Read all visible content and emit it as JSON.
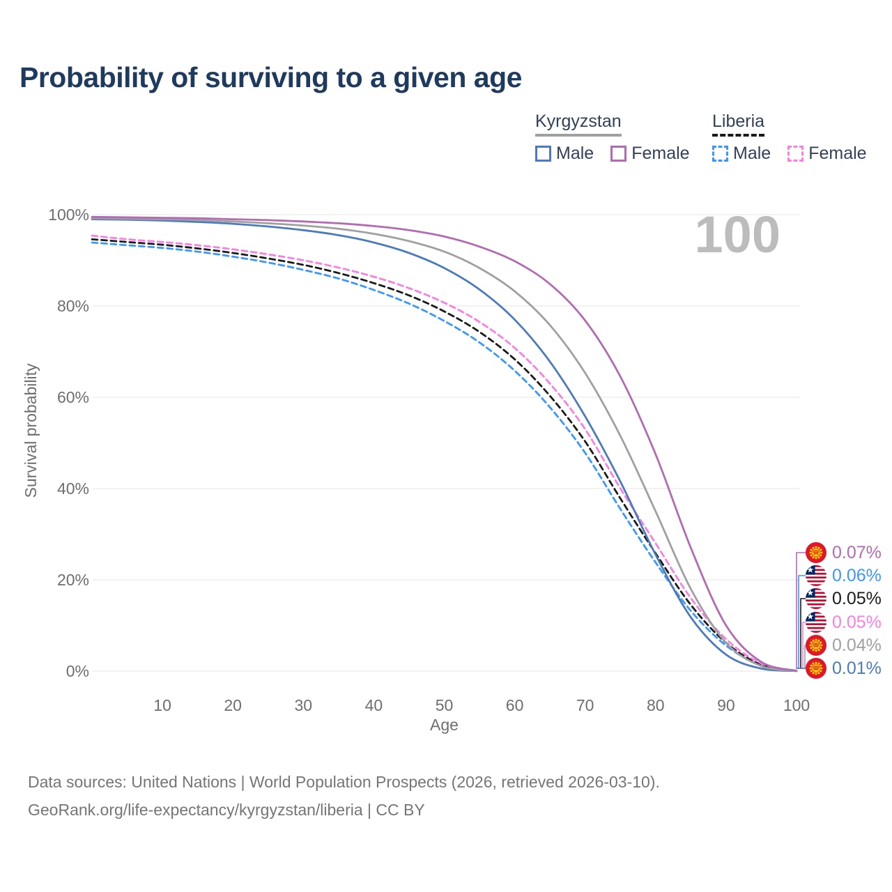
{
  "header": {
    "title": "Probability of surviving to a given age"
  },
  "legend": {
    "groups": [
      {
        "country": "Kyrgyzstan",
        "line_style": "solid",
        "underline_color": "#a0a0a0",
        "items": [
          {
            "label": "Male",
            "color": "#4a7bbf"
          },
          {
            "label": "Female",
            "color": "#b36ab3"
          }
        ]
      },
      {
        "country": "Liberia",
        "line_style": "dashed",
        "underline_color": "#1a1a1a",
        "items": [
          {
            "label": "Male",
            "color": "#3898ff"
          },
          {
            "label": "Female",
            "color": "#fb7ee3"
          }
        ]
      }
    ]
  },
  "chart_data": {
    "type": "line",
    "title": "Probability of surviving to a given age",
    "xlabel": "Age",
    "ylabel": "Survival probability",
    "xlim": [
      0,
      100
    ],
    "ylim": [
      0,
      100
    ],
    "x_ticks": [
      10,
      20,
      30,
      40,
      50,
      60,
      70,
      80,
      90,
      100
    ],
    "y_ticks": [
      0,
      20,
      40,
      60,
      80,
      100
    ],
    "y_tick_suffix": "%",
    "grid": "horizontal",
    "grid_color": "#eaeaea",
    "tick_color": "#6e6e6e",
    "watermark": "100",
    "watermark_color": "#bcbcbc",
    "ages": [
      0,
      5,
      10,
      15,
      20,
      25,
      30,
      35,
      40,
      45,
      50,
      55,
      60,
      65,
      70,
      75,
      80,
      85,
      90,
      95,
      100
    ],
    "series": [
      {
        "id": "liberia-male",
        "name": "Liberia Male",
        "country": "liberia",
        "color": "#3898ff",
        "dash": true,
        "values": [
          93.9,
          93.3,
          92.7,
          91.9,
          90.8,
          89.5,
          87.9,
          86.0,
          83.5,
          80.5,
          76.7,
          72.0,
          65.8,
          57.8,
          47.8,
          35.5,
          23.8,
          13.2,
          5.6,
          1.2,
          0.06
        ]
      },
      {
        "id": "liberia-all",
        "name": "Liberia (both sexes)",
        "country": "liberia",
        "color": "#1a1a1a",
        "dash": true,
        "values": [
          94.6,
          94.0,
          93.4,
          92.6,
          91.6,
          90.4,
          89.0,
          87.2,
          85.0,
          82.3,
          78.8,
          74.3,
          68.3,
          60.3,
          50.3,
          37.8,
          25.8,
          14.5,
          6.2,
          1.4,
          0.05
        ]
      },
      {
        "id": "liberia-female",
        "name": "Liberia Female",
        "country": "liberia",
        "color": "#fb7ee3",
        "dash": true,
        "values": [
          95.4,
          94.6,
          94.0,
          93.3,
          92.4,
          91.3,
          90.0,
          88.4,
          86.4,
          83.9,
          80.7,
          76.5,
          70.8,
          63.0,
          53.0,
          40.0,
          28.0,
          16.0,
          7.0,
          1.7,
          0.05
        ]
      },
      {
        "id": "kyrgyzstan-male",
        "name": "Kyrgyzstan Male",
        "country": "kyrgyzstan",
        "color": "#4a7bbf",
        "dash": false,
        "values": [
          99.0,
          98.9,
          98.7,
          98.4,
          98.0,
          97.4,
          96.6,
          95.5,
          93.9,
          91.6,
          88.3,
          83.6,
          77.0,
          67.8,
          55.8,
          41.5,
          25.5,
          11.8,
          3.6,
          0.55,
          0.01
        ]
      },
      {
        "id": "kyrgyzstan-all",
        "name": "Kyrgyzstan (both sexes)",
        "country": "kyrgyzstan",
        "color": "#a0a0a0",
        "dash": false,
        "values": [
          99.2,
          99.1,
          99.0,
          98.8,
          98.5,
          98.1,
          97.6,
          96.9,
          95.8,
          94.2,
          91.9,
          88.3,
          83.2,
          75.8,
          65.3,
          51.5,
          35.0,
          18.0,
          6.2,
          1.1,
          0.04
        ]
      },
      {
        "id": "kyrgyzstan-female",
        "name": "Kyrgyzstan Female",
        "country": "kyrgyzstan",
        "color": "#b36ab3",
        "dash": false,
        "values": [
          99.5,
          99.4,
          99.3,
          99.2,
          99.0,
          98.8,
          98.5,
          98.1,
          97.5,
          96.6,
          95.2,
          93.0,
          89.8,
          84.8,
          76.8,
          64.5,
          47.5,
          27.0,
          10.0,
          2.0,
          0.07
        ]
      }
    ],
    "end_labels": [
      {
        "label": "0.07%",
        "series_id": "kyrgyzstan-female"
      },
      {
        "label": "0.06%",
        "series_id": "liberia-male"
      },
      {
        "label": "0.05%",
        "series_id": "liberia-all"
      },
      {
        "label": "0.05%",
        "series_id": "liberia-female"
      },
      {
        "label": "0.04%",
        "series_id": "kyrgyzstan-all"
      },
      {
        "label": "0.01%",
        "series_id": "kyrgyzstan-male"
      }
    ]
  },
  "flags": {
    "kyrgyzstan": {
      "red": "#e0162b",
      "yellow": "#ffd900"
    },
    "liberia": {
      "red": "#bf0a30",
      "blue": "#002868",
      "white": "#ffffff"
    }
  },
  "footer": {
    "line1": "Data sources: United Nations | World Population Prospects (2026, retrieved 2026-03-10).",
    "line2": "GeoRank.org/life-expectancy/kyrgyzstan/liberia | CC BY"
  }
}
